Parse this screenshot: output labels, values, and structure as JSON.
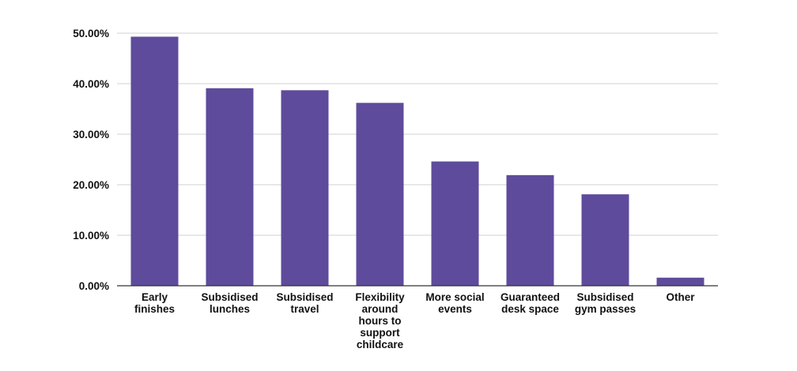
{
  "chart_data": {
    "type": "bar",
    "title": "",
    "xlabel": "",
    "ylabel": "",
    "categories": [
      "Early finishes",
      "Subsidised lunches",
      "Subsidised travel",
      "Flexibility around hours to support childcare",
      "More social events",
      "Guaranteed desk space",
      "Subsidised gym passes",
      "Other"
    ],
    "category_label_lines": [
      [
        "Early",
        "finishes"
      ],
      [
        "Subsidised",
        "lunches"
      ],
      [
        "Subsidised",
        "travel"
      ],
      [
        "Flexibility",
        "around",
        "hours to",
        "support",
        "childcare"
      ],
      [
        "More social",
        "events"
      ],
      [
        "Guaranteed",
        "desk space"
      ],
      [
        "Subsidised",
        "gym passes"
      ],
      [
        "Other"
      ]
    ],
    "values": [
      49.3,
      39.1,
      38.7,
      36.2,
      24.6,
      21.9,
      18.1,
      1.6
    ],
    "ylim": [
      0,
      50
    ],
    "yticks": [
      0,
      10,
      20,
      30,
      40,
      50
    ],
    "ytick_labels": [
      "0.00%",
      "10.00%",
      "20.00%",
      "30.00%",
      "40.00%",
      "50.00%"
    ],
    "grid": true,
    "legend": "none",
    "colors": {
      "bar": "#5e4b9c",
      "grid": "#d0d0d0",
      "axis": "#333333",
      "text": "#111111"
    }
  }
}
